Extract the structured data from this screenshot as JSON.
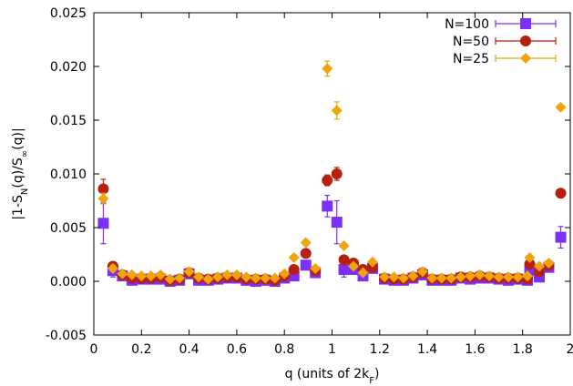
{
  "chart_data": {
    "type": "scatter",
    "xlabel": "q (units of 2k",
    "xlabel_sub": "F",
    "xlabel_close": ")",
    "ylabel_parts": [
      "|1-S",
      "N",
      "(q)/S",
      "∞",
      "(q)|"
    ],
    "xlim": [
      0,
      2
    ],
    "ylim": [
      -0.005,
      0.025
    ],
    "xticks": [
      0,
      0.2,
      0.4,
      0.6,
      0.8,
      1,
      1.2,
      1.4,
      1.6,
      1.8,
      2
    ],
    "xtick_labels": [
      "0",
      "0.2",
      "0.4",
      "0.6",
      "0.8",
      "1",
      "1.2",
      "1.4",
      "1.6",
      "1.8",
      "2"
    ],
    "yticks": [
      -0.005,
      0,
      0.005,
      0.01,
      0.015,
      0.02,
      0.025
    ],
    "ytick_labels": [
      "-0.005",
      "0.000",
      "0.005",
      "0.010",
      "0.015",
      "0.020",
      "0.025"
    ],
    "grid": false,
    "legend_position": "top-right",
    "series": [
      {
        "name": "N=100",
        "marker": "square",
        "color": "#7b2ff7",
        "points": [
          [
            0.04,
            0.0054,
            0.0019
          ],
          [
            0.08,
            0.001,
            0.0006
          ],
          [
            0.12,
            0.0005,
            0.0003
          ],
          [
            0.16,
            0.0001,
            0.0002
          ],
          [
            0.2,
            0.0002,
            0.0002
          ],
          [
            0.24,
            0.0002,
            0.0002
          ],
          [
            0.28,
            0.0002,
            0.0002
          ],
          [
            0.32,
            0.0,
            0.0002
          ],
          [
            0.36,
            0.0001,
            0.0002
          ],
          [
            0.4,
            0.0007,
            0.0002
          ],
          [
            0.44,
            0.0001,
            0.0002
          ],
          [
            0.48,
            0.0001,
            0.0002
          ],
          [
            0.52,
            0.0002,
            0.0002
          ],
          [
            0.56,
            0.0003,
            0.0002
          ],
          [
            0.6,
            0.0003,
            0.0002
          ],
          [
            0.64,
            0.0001,
            0.0002
          ],
          [
            0.68,
            0.0,
            0.0002
          ],
          [
            0.72,
            0.0001,
            0.0002
          ],
          [
            0.76,
            0.0,
            0.0002
          ],
          [
            0.8,
            0.0003,
            0.0002
          ],
          [
            0.84,
            0.0005,
            0.0002
          ],
          [
            0.89,
            0.0015,
            0.0003
          ],
          [
            0.93,
            0.0008,
            0.0003
          ],
          [
            0.98,
            0.007,
            0.001
          ],
          [
            1.02,
            0.0055,
            0.002
          ],
          [
            1.05,
            0.0011,
            0.0007
          ],
          [
            1.09,
            0.0011,
            0.0003
          ],
          [
            1.13,
            0.0005,
            0.0003
          ],
          [
            1.17,
            0.0012,
            0.0003
          ],
          [
            1.22,
            0.0002,
            0.0002
          ],
          [
            1.26,
            0.0001,
            0.0002
          ],
          [
            1.3,
            0.0001,
            0.0002
          ],
          [
            1.34,
            0.0003,
            0.0002
          ],
          [
            1.38,
            0.0006,
            0.0002
          ],
          [
            1.42,
            0.0001,
            0.0002
          ],
          [
            1.46,
            0.0001,
            0.0002
          ],
          [
            1.5,
            0.0001,
            0.0002
          ],
          [
            1.54,
            0.0003,
            0.0002
          ],
          [
            1.58,
            0.0002,
            0.0002
          ],
          [
            1.62,
            0.0003,
            0.0002
          ],
          [
            1.66,
            0.0003,
            0.0002
          ],
          [
            1.7,
            0.0002,
            0.0002
          ],
          [
            1.74,
            0.0001,
            0.0002
          ],
          [
            1.78,
            0.0002,
            0.0002
          ],
          [
            1.82,
            0.0001,
            0.0002
          ],
          [
            1.83,
            0.001,
            0.0003
          ],
          [
            1.87,
            0.0004,
            0.0003
          ],
          [
            1.91,
            0.0013,
            0.0003
          ],
          [
            1.96,
            0.0041,
            0.001
          ]
        ]
      },
      {
        "name": "N=50",
        "marker": "circle",
        "color": "#b5200f",
        "points": [
          [
            0.04,
            0.0086,
            0.0009
          ],
          [
            0.08,
            0.0014,
            0.0004
          ],
          [
            0.12,
            0.0006,
            0.0002
          ],
          [
            0.16,
            0.0003,
            0.0002
          ],
          [
            0.2,
            0.0003,
            0.0002
          ],
          [
            0.24,
            0.0003,
            0.0002
          ],
          [
            0.28,
            0.0004,
            0.0002
          ],
          [
            0.32,
            0.0001,
            0.0002
          ],
          [
            0.36,
            0.0002,
            0.0002
          ],
          [
            0.4,
            0.0008,
            0.0002
          ],
          [
            0.44,
            0.0003,
            0.0002
          ],
          [
            0.48,
            0.0002,
            0.0002
          ],
          [
            0.52,
            0.0003,
            0.0002
          ],
          [
            0.56,
            0.0004,
            0.0002
          ],
          [
            0.6,
            0.0004,
            0.0002
          ],
          [
            0.64,
            0.0002,
            0.0002
          ],
          [
            0.68,
            0.0002,
            0.0002
          ],
          [
            0.72,
            0.0002,
            0.0002
          ],
          [
            0.76,
            0.0001,
            0.0002
          ],
          [
            0.8,
            0.0005,
            0.0002
          ],
          [
            0.84,
            0.0011,
            0.0002
          ],
          [
            0.89,
            0.0026,
            0.0003
          ],
          [
            0.93,
            0.001,
            0.0003
          ],
          [
            0.98,
            0.0094,
            0.0005
          ],
          [
            1.02,
            0.01,
            0.0006
          ],
          [
            1.05,
            0.002,
            0.0003
          ],
          [
            1.09,
            0.0017,
            0.0002
          ],
          [
            1.13,
            0.0011,
            0.0002
          ],
          [
            1.17,
            0.0013,
            0.0002
          ],
          [
            1.22,
            0.0003,
            0.0002
          ],
          [
            1.26,
            0.0002,
            0.0002
          ],
          [
            1.3,
            0.0002,
            0.0002
          ],
          [
            1.34,
            0.0004,
            0.0002
          ],
          [
            1.38,
            0.0008,
            0.0002
          ],
          [
            1.42,
            0.0002,
            0.0002
          ],
          [
            1.46,
            0.0002,
            0.0002
          ],
          [
            1.5,
            0.0002,
            0.0002
          ],
          [
            1.54,
            0.0004,
            0.0002
          ],
          [
            1.58,
            0.0004,
            0.0002
          ],
          [
            1.62,
            0.0005,
            0.0002
          ],
          [
            1.66,
            0.0004,
            0.0002
          ],
          [
            1.7,
            0.0003,
            0.0002
          ],
          [
            1.74,
            0.0003,
            0.0002
          ],
          [
            1.78,
            0.0003,
            0.0002
          ],
          [
            1.82,
            0.0002,
            0.0002
          ],
          [
            1.83,
            0.0016,
            0.0002
          ],
          [
            1.87,
            0.0009,
            0.0002
          ],
          [
            1.91,
            0.0015,
            0.0002
          ],
          [
            1.96,
            0.0082,
            0.0002
          ]
        ]
      },
      {
        "name": "N=25",
        "marker": "diamond",
        "color": "#f0a30a",
        "points": [
          [
            0.04,
            0.0077,
            0.0005
          ],
          [
            0.08,
            0.0012,
            0.0003
          ],
          [
            0.12,
            0.0007,
            0.0002
          ],
          [
            0.16,
            0.0006,
            0.0002
          ],
          [
            0.2,
            0.0005,
            0.0002
          ],
          [
            0.24,
            0.0005,
            0.0002
          ],
          [
            0.28,
            0.0006,
            0.0002
          ],
          [
            0.32,
            0.0002,
            0.0002
          ],
          [
            0.36,
            0.0003,
            0.0002
          ],
          [
            0.4,
            0.0009,
            0.0002
          ],
          [
            0.44,
            0.0004,
            0.0002
          ],
          [
            0.48,
            0.0002,
            0.0002
          ],
          [
            0.52,
            0.0004,
            0.0002
          ],
          [
            0.56,
            0.0006,
            0.0002
          ],
          [
            0.6,
            0.0006,
            0.0002
          ],
          [
            0.64,
            0.0004,
            0.0002
          ],
          [
            0.68,
            0.0003,
            0.0002
          ],
          [
            0.72,
            0.0003,
            0.0002
          ],
          [
            0.76,
            0.0003,
            0.0002
          ],
          [
            0.8,
            0.0007,
            0.0002
          ],
          [
            0.84,
            0.0022,
            0.0002
          ],
          [
            0.89,
            0.0036,
            0.0002
          ],
          [
            0.93,
            0.0012,
            0.0002
          ],
          [
            0.98,
            0.0198,
            0.0007
          ],
          [
            1.02,
            0.0159,
            0.0008
          ],
          [
            1.05,
            0.0033,
            0.0002
          ],
          [
            1.09,
            0.0014,
            0.0002
          ],
          [
            1.13,
            0.0008,
            0.0002
          ],
          [
            1.17,
            0.0018,
            0.0002
          ],
          [
            1.22,
            0.0004,
            0.0002
          ],
          [
            1.26,
            0.0004,
            0.0002
          ],
          [
            1.3,
            0.0003,
            0.0002
          ],
          [
            1.34,
            0.0005,
            0.0002
          ],
          [
            1.38,
            0.0009,
            0.0002
          ],
          [
            1.42,
            0.0003,
            0.0002
          ],
          [
            1.46,
            0.0003,
            0.0002
          ],
          [
            1.5,
            0.0003,
            0.0002
          ],
          [
            1.54,
            0.0004,
            0.0002
          ],
          [
            1.58,
            0.0005,
            0.0002
          ],
          [
            1.62,
            0.0006,
            0.0002
          ],
          [
            1.66,
            0.0005,
            0.0002
          ],
          [
            1.7,
            0.0004,
            0.0002
          ],
          [
            1.74,
            0.0004,
            0.0002
          ],
          [
            1.78,
            0.0004,
            0.0002
          ],
          [
            1.82,
            0.0005,
            0.0002
          ],
          [
            1.83,
            0.0022,
            0.0002
          ],
          [
            1.87,
            0.0014,
            0.0002
          ],
          [
            1.91,
            0.0017,
            0.0002
          ],
          [
            1.96,
            0.0162,
            0.0002
          ]
        ]
      }
    ]
  }
}
